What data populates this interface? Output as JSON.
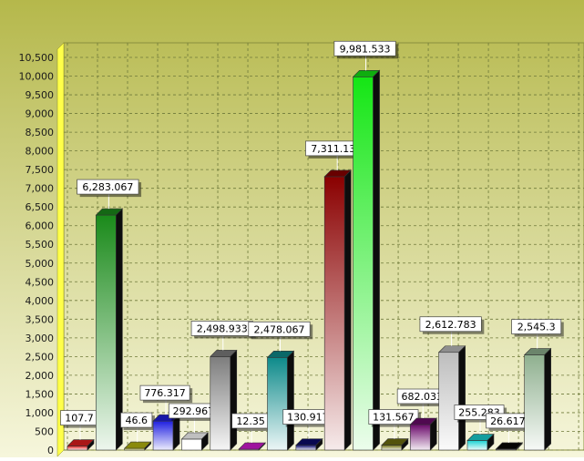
{
  "chart_data": {
    "type": "bar",
    "style": "3d",
    "title": "",
    "xlabel": "",
    "ylabel": "",
    "ylim": [
      0,
      10500
    ],
    "y_ticks": [
      "0",
      "500",
      "1,000",
      "1,500",
      "2,000",
      "2,500",
      "3,000",
      "3,500",
      "4,000",
      "4,500",
      "5,000",
      "5,500",
      "6,000",
      "6,500",
      "7,000",
      "7,500",
      "8,000",
      "8,500",
      "9,000",
      "9,500",
      "10,000",
      "10,500"
    ],
    "grid": true,
    "legend": "none",
    "bars": [
      {
        "value": 107.7,
        "label": "107.7",
        "color": "#e21d1d"
      },
      {
        "value": 6283.067,
        "label": "6,283.067",
        "color": "#1a8a1a"
      },
      {
        "value": 46.6,
        "label": "46.6",
        "color": "#b8b80e"
      },
      {
        "value": 776.317,
        "label": "776.317",
        "color": "#1f1fe0"
      },
      {
        "value": 292.967,
        "label": "292.967",
        "color": "#ffffff"
      },
      {
        "value": 2498.933,
        "label": "2,498.933",
        "color": "#7d7d7d"
      },
      {
        "value": 12.35,
        "label": "12.35",
        "color": "#d21ad2"
      },
      {
        "value": 2478.067,
        "label": "2,478.067",
        "color": "#0d8a8a"
      },
      {
        "value": 130.917,
        "label": "130.917",
        "color": "#0a0a6b"
      },
      {
        "value": 7311.133,
        "label": "7,311.133",
        "color": "#8a0000"
      },
      {
        "value": 9981.533,
        "label": "9,981.533",
        "color": "#14e614"
      },
      {
        "value": 131.567,
        "label": "131.567",
        "color": "#6e6e10"
      },
      {
        "value": 682.033,
        "label": "682.033",
        "color": "#6a0a6a"
      },
      {
        "value": 2612.783,
        "label": "2,612.783",
        "color": "#bdbdbd"
      },
      {
        "value": 255.283,
        "label": "255.283",
        "color": "#1ad2d2"
      },
      {
        "value": 26.617,
        "label": "26.617",
        "color": "#050505"
      },
      {
        "value": 2545.3,
        "label": "2,545.3",
        "color": "#8fb08f"
      }
    ]
  },
  "colors": {
    "background_top": "#b5b84b",
    "background_bottom": "#f6f6dc",
    "y_axis_wall": "#ffff4a",
    "grid": "#6f7a3a",
    "label_box": "#ffffff"
  }
}
